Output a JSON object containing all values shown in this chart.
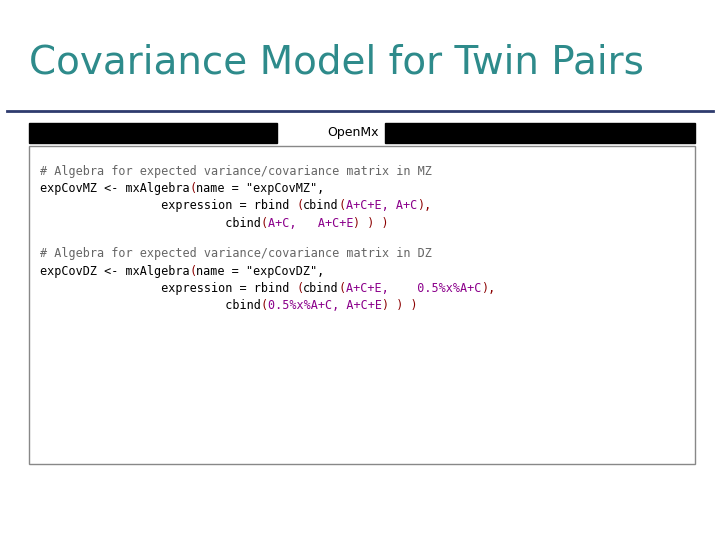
{
  "title": "Covariance Model for Twin Pairs",
  "title_color": "#2E8B8B",
  "title_fontsize": 28,
  "background_color": "#FFFFFF",
  "tab_label": "OpenMx",
  "separator_color": "#2E3B6E",
  "code_font_size": 8.5,
  "mz_lines": [
    [
      {
        "t": "# Algebra for expected variance/covariance matrix in MZ",
        "c": "#666666"
      }
    ],
    [
      {
        "t": "expCovMZ <- mxAlgebra",
        "c": "#000000"
      },
      {
        "t": "(",
        "c": "#8B0000"
      },
      {
        "t": "name = \"expCovMZ\",",
        "c": "#000000"
      }
    ],
    [
      {
        "t": "                 expression = rbind ",
        "c": "#000000"
      },
      {
        "t": "(",
        "c": "#8B0000"
      },
      {
        "t": "cbind",
        "c": "#000000"
      },
      {
        "t": "(",
        "c": "#8B0000"
      },
      {
        "t": "A+C+E, A+C",
        "c": "#8B008B"
      },
      {
        "t": "),",
        "c": "#8B0000"
      }
    ],
    [
      {
        "t": "                          cbind",
        "c": "#000000"
      },
      {
        "t": "(",
        "c": "#8B0000"
      },
      {
        "t": "A+C,   A+C+E",
        "c": "#8B008B"
      },
      {
        "t": ") ) )",
        "c": "#8B0000"
      }
    ]
  ],
  "dz_lines": [
    [
      {
        "t": "# Algebra for expected variance/covariance matrix in DZ",
        "c": "#666666"
      }
    ],
    [
      {
        "t": "expCovDZ <- mxAlgebra",
        "c": "#000000"
      },
      {
        "t": "(",
        "c": "#8B0000"
      },
      {
        "t": "name = \"expCovDZ\",",
        "c": "#000000"
      }
    ],
    [
      {
        "t": "                 expression = rbind ",
        "c": "#000000"
      },
      {
        "t": "(",
        "c": "#8B0000"
      },
      {
        "t": "cbind",
        "c": "#000000"
      },
      {
        "t": "(",
        "c": "#8B0000"
      },
      {
        "t": "A+C+E,    0.5%x%A+C",
        "c": "#8B008B"
      },
      {
        "t": "),",
        "c": "#8B0000"
      }
    ],
    [
      {
        "t": "                          cbind",
        "c": "#000000"
      },
      {
        "t": "(",
        "c": "#8B0000"
      },
      {
        "t": "0.5%x%A+C, A+C+E",
        "c": "#8B008B"
      },
      {
        "t": ") ) )",
        "c": "#8B0000"
      }
    ]
  ]
}
